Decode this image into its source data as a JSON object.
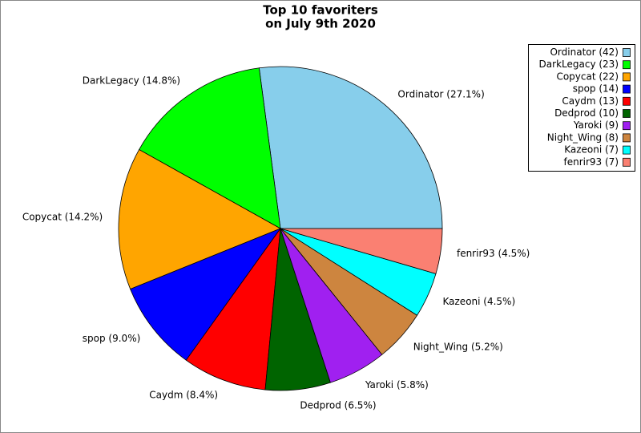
{
  "chart_data": {
    "type": "pie",
    "title": [
      "Top 10 favoriters",
      "on July 9th 2020"
    ],
    "categories": [
      "Ordinator (42)",
      "DarkLegacy (23)",
      "Copycat (22)",
      "spop (14)",
      "Caydm (13)",
      "Dedprod (10)",
      "Yaroki (9)",
      "Night_Wing (8)",
      "Kazeoni (7)",
      "fenrir93 (7)"
    ],
    "values": [
      27.1,
      14.8,
      14.2,
      9.0,
      8.4,
      6.5,
      5.8,
      5.2,
      4.5,
      4.5
    ],
    "value_labels": [
      "Ordinator (27.1%)",
      "DarkLegacy (14.8%)",
      "Copycat (14.2%)",
      "spop (9.0%)",
      "Caydm (8.4%)",
      "Dedprod (6.5%)",
      "Yaroki (5.8%)",
      "Night_Wing (5.2%)",
      "Kazeoni (4.5%)",
      "fenrir93 (4.5%)"
    ],
    "colors": [
      "#87ceeb",
      "#00ff00",
      "#ffa500",
      "#0000ff",
      "#ff0000",
      "#006400",
      "#a020f0",
      "#cd853f",
      "#00ffff",
      "#fa8072"
    ],
    "legend": "upper right"
  }
}
